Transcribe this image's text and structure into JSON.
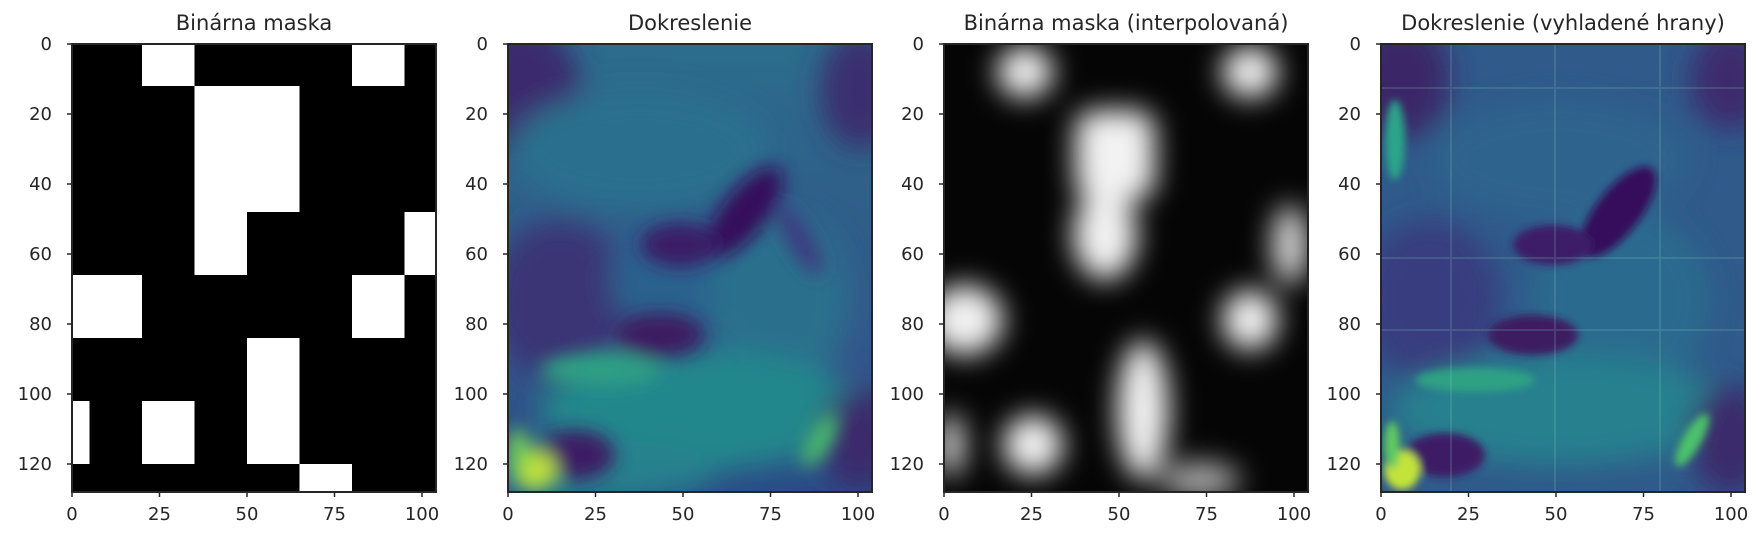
{
  "chart_data": [
    {
      "type": "heatmap",
      "title": "Binárna maska",
      "colormap": "gray",
      "image_size": {
        "width": 104,
        "height": 128
      },
      "xlim": [
        0,
        104
      ],
      "ylim": [
        128,
        0
      ],
      "xticks": [
        0,
        25,
        50,
        75,
        100
      ],
      "yticks": [
        0,
        20,
        40,
        60,
        80,
        100,
        120
      ],
      "background_value": 0,
      "white_regions": [
        {
          "x0": 20,
          "x1": 35,
          "y0": 0,
          "y1": 12
        },
        {
          "x0": 80,
          "x1": 95,
          "y0": 0,
          "y1": 12
        },
        {
          "x0": 35,
          "x1": 65,
          "y0": 12,
          "y1": 48
        },
        {
          "x0": 35,
          "x1": 50,
          "y0": 48,
          "y1": 66
        },
        {
          "x0": 95,
          "x1": 104,
          "y0": 48,
          "y1": 66
        },
        {
          "x0": 0,
          "x1": 20,
          "y0": 66,
          "y1": 84
        },
        {
          "x0": 80,
          "x1": 95,
          "y0": 66,
          "y1": 84
        },
        {
          "x0": 50,
          "x1": 65,
          "y0": 84,
          "y1": 120
        },
        {
          "x0": 0,
          "x1": 5,
          "y0": 102,
          "y1": 120
        },
        {
          "x0": 20,
          "x1": 35,
          "y0": 102,
          "y1": 120
        },
        {
          "x0": 65,
          "x1": 80,
          "y0": 120,
          "y1": 128
        }
      ]
    },
    {
      "type": "heatmap",
      "title": "Dokreslenie",
      "colormap": "viridis",
      "image_size": {
        "width": 104,
        "height": 128
      },
      "xlim": [
        0,
        104
      ],
      "ylim": [
        128,
        0
      ],
      "xticks": [
        0,
        25,
        50,
        75,
        100
      ],
      "yticks": [
        0,
        20,
        40,
        60,
        80,
        100,
        120
      ]
    },
    {
      "type": "heatmap",
      "title": "Binárna maska (interpolovaná)",
      "colormap": "gray",
      "image_size": {
        "width": 104,
        "height": 128
      },
      "xlim": [
        0,
        104
      ],
      "ylim": [
        128,
        0
      ],
      "xticks": [
        0,
        25,
        50,
        75,
        100
      ],
      "yticks": [
        0,
        20,
        40,
        60,
        80,
        100,
        120
      ]
    },
    {
      "type": "heatmap",
      "title": "Dokreslenie (vyhladené hrany)",
      "colormap": "viridis",
      "image_size": {
        "width": 104,
        "height": 128
      },
      "xlim": [
        0,
        104
      ],
      "ylim": [
        128,
        0
      ],
      "xticks": [
        0,
        25,
        50,
        75,
        100
      ],
      "yticks": [
        0,
        20,
        40,
        60,
        80,
        100,
        120
      ]
    }
  ],
  "colors": {
    "axis_frame": "#262626",
    "mask_white": "#ffffff",
    "mask_black": "#000000",
    "viridis_dark": "#3b1a5e",
    "viridis_mid": "#2f6b8e",
    "viridis_teal": "#23998a",
    "viridis_yellow": "#d4e32f"
  }
}
